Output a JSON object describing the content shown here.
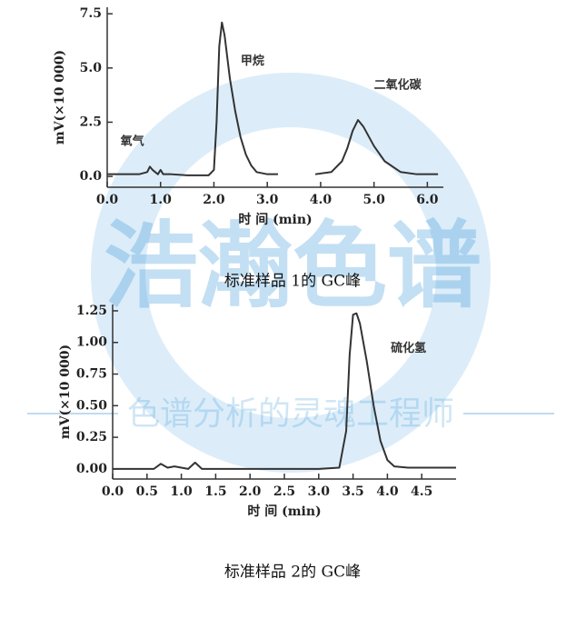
{
  "watermark": {
    "title": "浩瀚色谱",
    "subtitle": "色谱分析的灵魂工程师"
  },
  "chart_data": [
    {
      "type": "line",
      "caption": "标准样品 1的 GC峰",
      "xlabel": "时 间 (min)",
      "ylabel": "mV(×10 000)",
      "xlim": [
        0,
        6.3
      ],
      "ylim": [
        -0.5,
        7.8
      ],
      "xticks": [
        {
          "value": 0,
          "label": "0.0"
        },
        {
          "value": 1,
          "label": "1.0"
        },
        {
          "value": 2,
          "label": "2.0"
        },
        {
          "value": 3,
          "label": "3.0"
        },
        {
          "value": 4,
          "label": "4.0"
        },
        {
          "value": 5,
          "label": "5.0"
        },
        {
          "value": 6,
          "label": "6.0"
        }
      ],
      "yticks": [
        {
          "value": 0,
          "label": "0.0"
        },
        2.5,
        {
          "value": 5,
          "label": "5.0"
        },
        7.5
      ],
      "x": [
        0,
        0.6,
        0.75,
        0.8,
        0.85,
        0.95,
        1.0,
        1.05,
        1.2,
        1.5,
        1.9,
        2.0,
        2.05,
        2.1,
        2.15,
        2.2,
        2.3,
        2.4,
        2.5,
        2.6,
        2.7,
        2.8,
        3.0,
        3.2,
        3.5,
        3.9,
        4.2,
        4.4,
        4.5,
        4.6,
        4.7,
        4.8,
        5.0,
        5.2,
        5.5,
        5.8,
        6.2
      ],
      "series": [
        {
          "color": "#333333",
          "values": [
            0.1,
            0.1,
            0.2,
            0.45,
            0.3,
            0.1,
            0.3,
            0.1,
            0.1,
            0.05,
            0.05,
            0.3,
            2.5,
            6.0,
            7.1,
            6.5,
            4.5,
            3.0,
            1.8,
            1.0,
            0.5,
            0.2,
            0.1,
            0.1,
            null,
            0.1,
            0.2,
            0.7,
            1.3,
            2.1,
            2.6,
            2.3,
            1.4,
            0.7,
            0.2,
            0.1,
            0.1
          ]
        }
      ],
      "annotations": [
        {
          "text": "氧气",
          "x": 0.25,
          "y": 1.6
        },
        {
          "text": "甲烷",
          "x": 2.5,
          "y": 5.3
        },
        {
          "text": "二氧化碳",
          "x": 5.0,
          "y": 4.2
        }
      ]
    },
    {
      "type": "line",
      "caption": "标准样品 2的 GC峰",
      "xlabel": "时 间 (min)",
      "ylabel": "mV(×10 000)",
      "xlim": [
        0,
        5.0
      ],
      "ylim": [
        -0.08,
        1.3
      ],
      "xticks": [
        {
          "value": 0,
          "label": "0.0"
        },
        0.5,
        {
          "value": 1,
          "label": "1.0"
        },
        1.5,
        {
          "value": 2,
          "label": "2.0"
        },
        2.5,
        {
          "value": 3,
          "label": "3.0"
        },
        3.5,
        {
          "value": 4,
          "label": "4.0"
        },
        4.5
      ],
      "yticks": [
        {
          "value": 0,
          "label": "0.00"
        },
        0.25,
        {
          "value": 0.5,
          "label": "0.50"
        },
        0.75,
        {
          "value": 1,
          "label": "1.00"
        },
        1.25
      ],
      "x": [
        0,
        0.6,
        0.7,
        0.8,
        0.9,
        1.1,
        1.2,
        1.3,
        2.0,
        3.0,
        3.3,
        3.4,
        3.45,
        3.5,
        3.55,
        3.6,
        3.7,
        3.8,
        3.9,
        4.0,
        4.1,
        4.3,
        5.0
      ],
      "series": [
        {
          "color": "#333333",
          "values": [
            0.0,
            0.0,
            0.04,
            0.01,
            0.02,
            0.0,
            0.05,
            0.0,
            0.0,
            0.0,
            0.01,
            0.3,
            0.9,
            1.22,
            1.23,
            1.15,
            0.85,
            0.5,
            0.22,
            0.07,
            0.02,
            0.01,
            0.01
          ]
        }
      ],
      "annotations": [
        {
          "text": "硫化氢",
          "x": 4.05,
          "y": 0.95
        }
      ]
    }
  ]
}
